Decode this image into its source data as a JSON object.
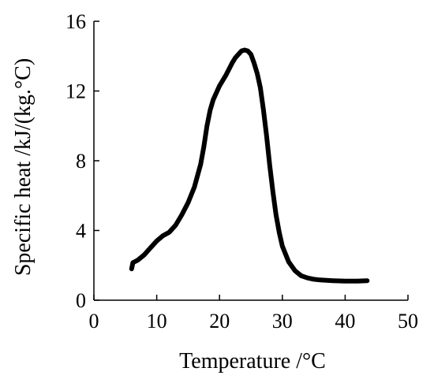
{
  "chart_data": {
    "type": "line",
    "title": "",
    "xlabel": "Temperature  /°C",
    "ylabel": "Specific heat /kJ/(kg.°C)",
    "xlim": [
      0,
      50
    ],
    "ylim": [
      0,
      16
    ],
    "xticks": [
      0,
      10,
      20,
      30,
      40,
      50
    ],
    "yticks": [
      0,
      4,
      8,
      12,
      16
    ],
    "grid": false,
    "legend": "none",
    "series": [
      {
        "color": "#000000",
        "x": [
          6.0,
          6.2,
          7.0,
          8.0,
          9.0,
          10.0,
          11.0,
          12.0,
          13.0,
          14.0,
          15.0,
          16.0,
          17.0,
          17.5,
          18.0,
          18.5,
          19.0,
          20.0,
          21.0,
          22.0,
          22.5,
          23.0,
          23.5,
          24.0,
          24.5,
          25.0,
          25.5,
          26.0,
          26.5,
          27.0,
          27.5,
          28.0,
          28.5,
          29.0,
          29.5,
          30.0,
          31.0,
          32.0,
          33.0,
          34.0,
          35.0,
          36.0,
          37.0,
          38.0,
          40.0,
          42.0,
          43.5
        ],
        "y": [
          1.8,
          2.15,
          2.3,
          2.6,
          3.0,
          3.4,
          3.7,
          3.9,
          4.3,
          4.9,
          5.6,
          6.5,
          7.8,
          8.8,
          10.0,
          10.9,
          11.5,
          12.3,
          12.9,
          13.6,
          13.9,
          14.1,
          14.3,
          14.35,
          14.3,
          14.1,
          13.6,
          13.0,
          12.2,
          10.9,
          9.4,
          7.7,
          6.2,
          4.9,
          3.9,
          3.1,
          2.2,
          1.7,
          1.4,
          1.28,
          1.2,
          1.16,
          1.14,
          1.12,
          1.1,
          1.1,
          1.12
        ]
      }
    ]
  }
}
